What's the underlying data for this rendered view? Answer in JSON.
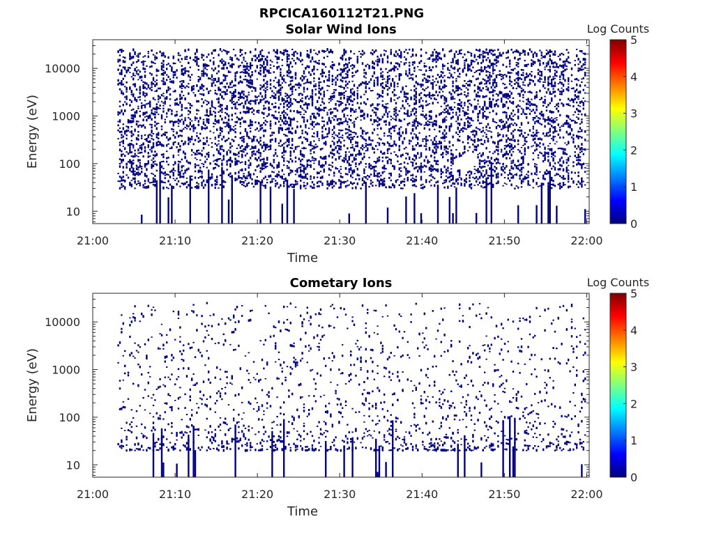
{
  "figure": {
    "title": "RPCICA160112T21.PNG"
  },
  "colormap": [
    "#00007f",
    "#0000ff",
    "#007fff",
    "#00ffff",
    "#7fff7f",
    "#ffff00",
    "#ff7f00",
    "#ff0000",
    "#7f0000"
  ],
  "data_color": "#000080",
  "chart_data": [
    {
      "type": "heatmap",
      "title": "Solar Wind Ions",
      "xlabel": "Time",
      "ylabel": "Energy (eV)",
      "yscale": "log",
      "x_ticks": [
        "21:00",
        "21:10",
        "21:20",
        "21:30",
        "21:40",
        "21:50",
        "22:00"
      ],
      "y_ticks": [
        "10",
        "100",
        "1000",
        "10000"
      ],
      "y_tick_values": [
        10,
        100,
        1000,
        10000
      ],
      "xlim_minutes": [
        0,
        60.3
      ],
      "ylim": [
        5.5,
        40000
      ],
      "colorbar": {
        "title": "Log Counts",
        "range": [
          0,
          5
        ],
        "ticks": [
          "0",
          "1",
          "2",
          "3",
          "4",
          "5"
        ]
      },
      "data_start_minute": 3,
      "cell_value_log_counts": 0,
      "points_per_column": 22,
      "low_energy_columns": 14,
      "seed": 7
    },
    {
      "type": "heatmap",
      "title": "Cometary Ions",
      "xlabel": "Time",
      "ylabel": "Energy (eV)",
      "yscale": "log",
      "x_ticks": [
        "21:00",
        "21:10",
        "21:20",
        "21:30",
        "21:40",
        "21:50",
        "22:00"
      ],
      "y_ticks": [
        "10",
        "100",
        "1000",
        "10000"
      ],
      "y_tick_values": [
        10,
        100,
        1000,
        10000
      ],
      "xlim_minutes": [
        0,
        60.3
      ],
      "ylim": [
        5.5,
        40000
      ],
      "colorbar": {
        "title": "Log Counts",
        "range": [
          0,
          5
        ],
        "ticks": [
          "0",
          "1",
          "2",
          "3",
          "4",
          "5"
        ]
      },
      "data_start_minute": 3,
      "cell_value_log_counts": 0,
      "points_per_column": 6,
      "low_energy_columns": 9,
      "seed": 19
    }
  ]
}
